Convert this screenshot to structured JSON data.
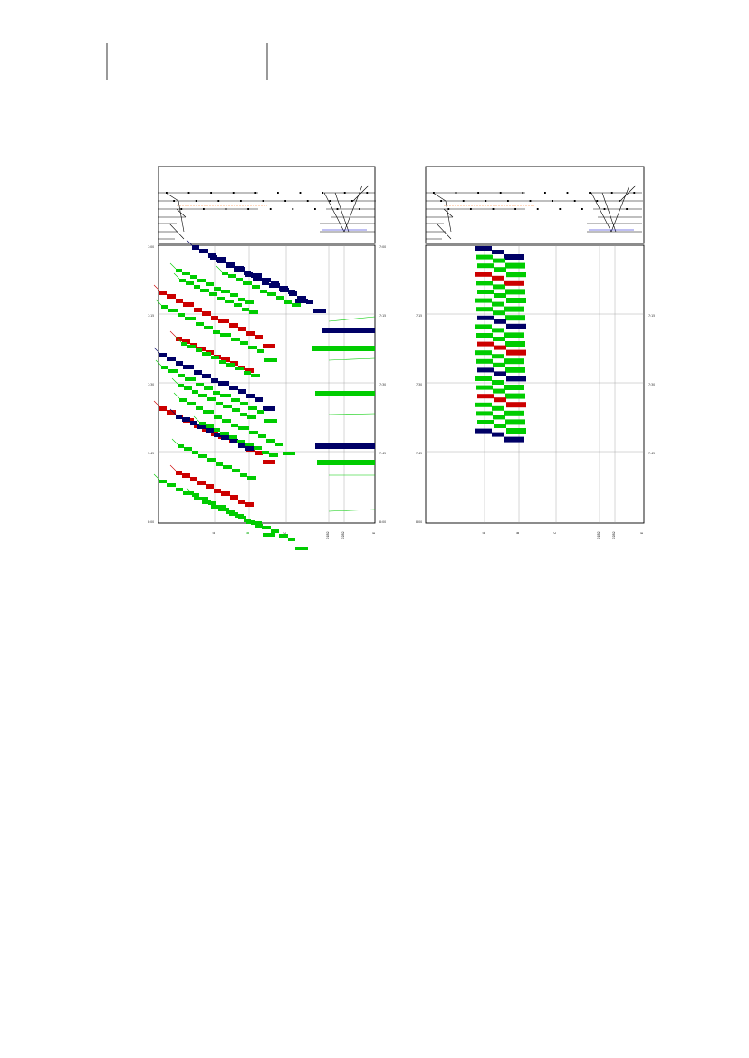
{
  "document": {
    "description_free": true
  },
  "colors": {
    "express": "#000066",
    "regional": "#cc0000",
    "local": "#00cc00",
    "grid": "#999999",
    "frame": "#000000",
    "track": "#000000",
    "signal_orange": "#ff6600",
    "signal_blue": "#0000cc"
  },
  "diagrams": [
    {
      "id": "left",
      "time_labels_left": [
        "7:00",
        "7:15",
        "7:30",
        "7:45",
        "8:00"
      ],
      "time_labels_right": [
        "7:00",
        "7:15",
        "7:30",
        "7:45",
        "8:00"
      ],
      "station_labels": [
        "A",
        "B",
        "C",
        "D1B2",
        "D2B2",
        "E"
      ],
      "highlight_station": "B"
    },
    {
      "id": "right",
      "time_labels_left": [
        "7:15",
        "7:30",
        "7:45",
        "8:00"
      ],
      "time_labels_right": [
        "7:15",
        "7:30",
        "7:45"
      ],
      "station_labels": [
        "A",
        "B",
        "C",
        "D1B2",
        "D2B2",
        "E"
      ],
      "highlight_station": ""
    }
  ]
}
